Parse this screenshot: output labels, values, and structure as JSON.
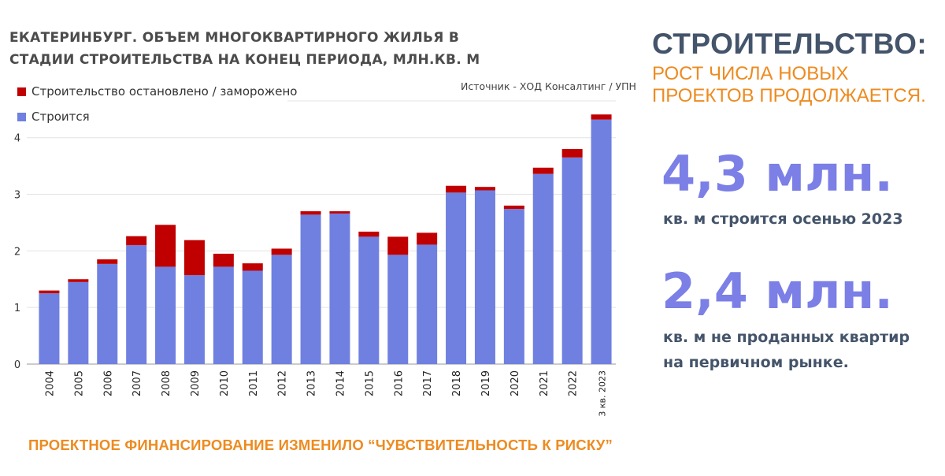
{
  "chart_data": {
    "type": "bar",
    "stacked": true,
    "title": "ЕКАТЕРИНБУРГ. ОБЪЕМ МНОГОКВАРТИРНОГО ЖИЛЬЯ В СТАДИИ СТРОИТЕЛЬСТВА НА КОНЕЦ ПЕРИОДА, МЛН.КВ. М",
    "source": "Источник - ХОД Консалтинг / УПН",
    "categories": [
      "2004",
      "2005",
      "2006",
      "2007",
      "2008",
      "2009",
      "2010",
      "2011",
      "2012",
      "2013",
      "2014",
      "2015",
      "2016",
      "2017",
      "2018",
      "2019",
      "2020",
      "2021",
      "2022",
      "3 кв. 2023"
    ],
    "series": [
      {
        "name": "Строится",
        "color": "#6f80e0",
        "values": [
          1.25,
          1.45,
          1.77,
          2.1,
          1.72,
          1.57,
          1.72,
          1.65,
          1.93,
          2.64,
          2.66,
          2.25,
          1.93,
          2.11,
          3.03,
          3.07,
          2.74,
          3.36,
          3.65,
          4.32
        ]
      },
      {
        "name": "Строительство остановлено / заморожено",
        "color": "#c00000",
        "values": [
          0.05,
          0.05,
          0.08,
          0.16,
          0.74,
          0.62,
          0.23,
          0.13,
          0.11,
          0.06,
          0.04,
          0.09,
          0.32,
          0.21,
          0.12,
          0.06,
          0.06,
          0.11,
          0.15,
          0.09
        ]
      }
    ],
    "yticks": [
      0,
      1,
      2,
      3,
      4
    ],
    "ylim": [
      0,
      4.65
    ],
    "grid": true,
    "legend": "top-left"
  },
  "headline": {
    "title": "СТРОИТЕЛЬСТВО:",
    "subtitle_line1": "РОСТ ЧИСЛА НОВЫХ",
    "subtitle_line2": "ПРОЕКТОВ ПРОДОЛЖАЕТСЯ."
  },
  "stats": [
    {
      "value": "4,3 млн.",
      "label_line1": "кв. м строится осенью 2023",
      "label_line2": ""
    },
    {
      "value": "2,4 млн.",
      "label_line1": "кв. м  не проданных квартир",
      "label_line2": "на первичном рынке."
    }
  ],
  "footer": "ПРОЕКТНОЕ ФИНАНСИРОВАНИЕ ИЗМЕНИЛО “ЧУВСТВИТЕЛЬНОСТЬ К РИСКУ”"
}
